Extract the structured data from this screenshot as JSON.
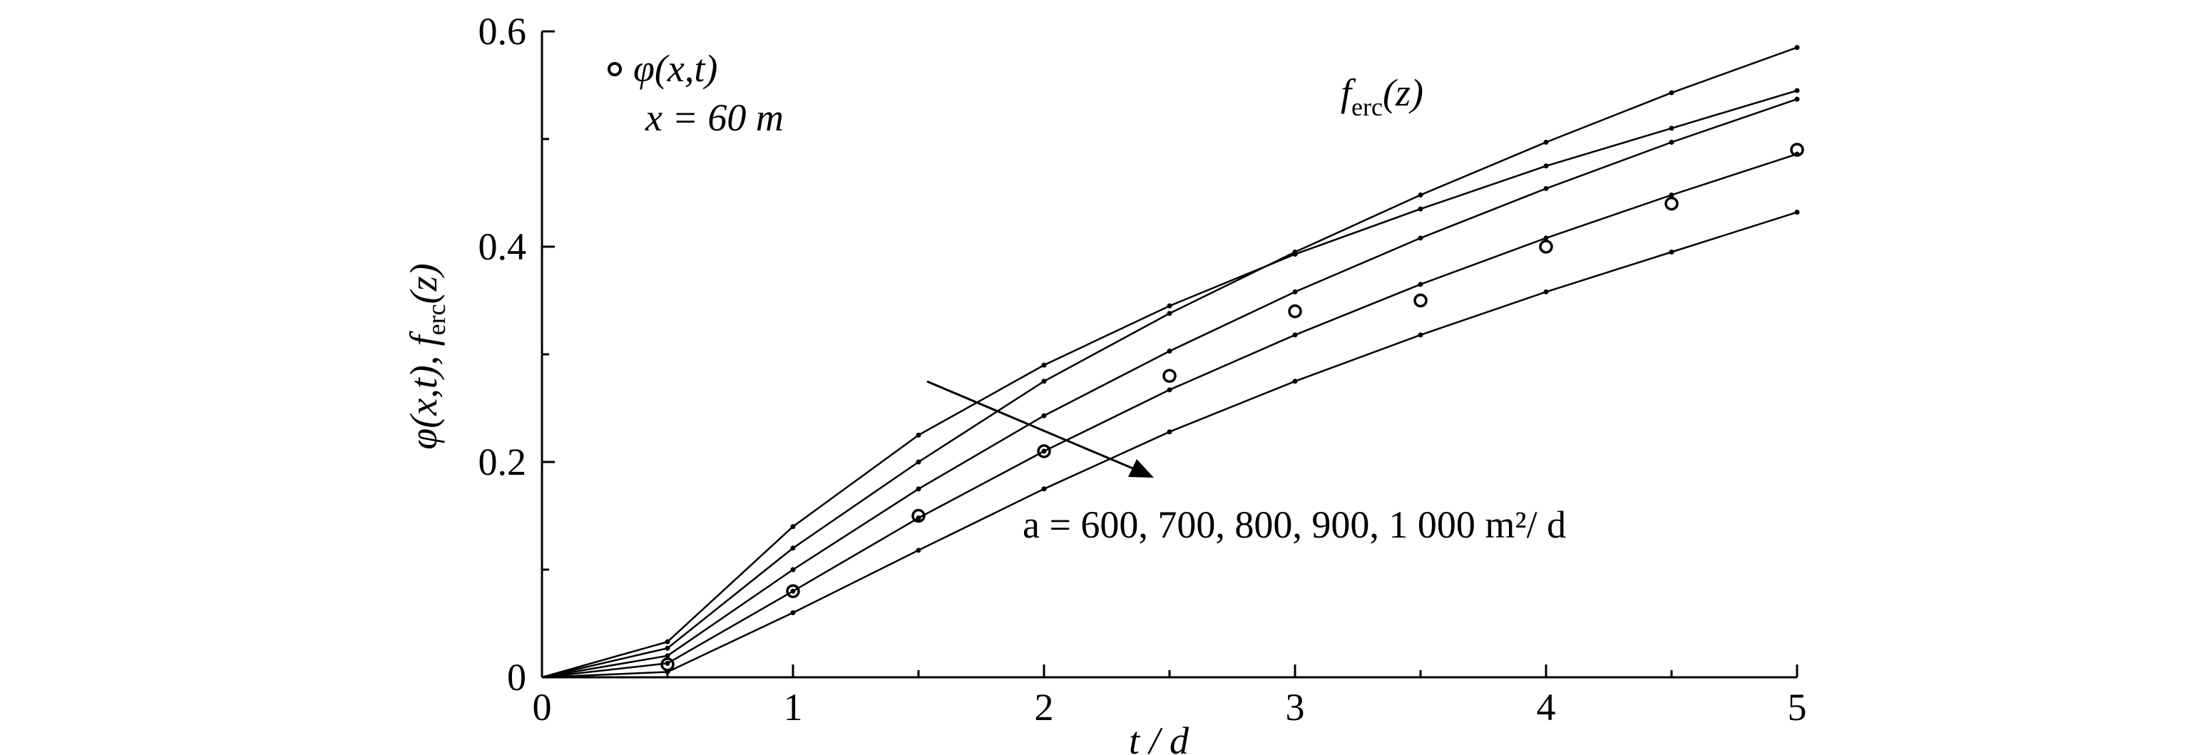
{
  "chart_data": {
    "type": "line",
    "xlabel": "t / d",
    "ylabel_main": "φ(x,t), f",
    "ylabel_sub": "erc",
    "ylabel_tail": "(z)",
    "xlim": [
      0,
      5
    ],
    "ylim": [
      0,
      0.6
    ],
    "x_ticks": [
      0,
      1,
      2,
      3,
      4,
      5
    ],
    "x_tick_labels": [
      "0",
      "1",
      "2",
      "3",
      "4",
      "5"
    ],
    "y_ticks": [
      0,
      0.2,
      0.4,
      0.6
    ],
    "y_tick_labels": [
      "0",
      "0.2",
      "0.4",
      "0.6"
    ],
    "grid": false,
    "legend": {
      "marker_label": "φ(x,t)",
      "condition": "x = 60 m",
      "curve_label_main": "f",
      "curve_label_sub": "erc",
      "curve_label_tail": "(z)"
    },
    "annotation": "a = 600, 700, 800, 900, 1 000 m²/ d",
    "line_series": [
      {
        "x": [
          0,
          0.5,
          1.0,
          1.5,
          2.0,
          2.5,
          3.0,
          3.5,
          4.0,
          4.5,
          5.0
        ],
        "values": [
          0,
          0.033,
          0.14,
          0.225,
          0.29,
          0.345,
          0.393,
          0.435,
          0.475,
          0.51,
          0.545
        ]
      },
      {
        "x": [
          0,
          0.5,
          1.0,
          1.5,
          2.0,
          2.5,
          3.0,
          3.5,
          4.0,
          4.5,
          5.0
        ],
        "values": [
          0,
          0.027,
          0.12,
          0.2,
          0.275,
          0.338,
          0.395,
          0.448,
          0.497,
          0.543,
          0.585
        ]
      },
      {
        "x": [
          0,
          0.5,
          1.0,
          1.5,
          2.0,
          2.5,
          3.0,
          3.5,
          4.0,
          4.5,
          5.0
        ],
        "values": [
          0,
          0.02,
          0.1,
          0.175,
          0.243,
          0.303,
          0.358,
          0.408,
          0.454,
          0.497,
          0.537
        ]
      },
      {
        "x": [
          0,
          0.5,
          1.0,
          1.5,
          2.0,
          2.5,
          3.0,
          3.5,
          4.0,
          4.5,
          5.0
        ],
        "values": [
          0,
          0.013,
          0.08,
          0.148,
          0.21,
          0.267,
          0.318,
          0.365,
          0.408,
          0.448,
          0.486
        ]
      },
      {
        "x": [
          0,
          0.5,
          1.0,
          1.5,
          2.0,
          2.5,
          3.0,
          3.5,
          4.0,
          4.5,
          5.0
        ],
        "values": [
          0,
          0.005,
          0.06,
          0.118,
          0.175,
          0.228,
          0.275,
          0.318,
          0.358,
          0.395,
          0.432
        ]
      }
    ],
    "marker_series": {
      "x": [
        0.5,
        1.0,
        1.5,
        2.0,
        2.5,
        3.0,
        3.5,
        4.0,
        4.5,
        5.0
      ],
      "values": [
        0.012,
        0.08,
        0.15,
        0.21,
        0.28,
        0.34,
        0.35,
        0.4,
        0.44,
        0.49
      ]
    }
  }
}
